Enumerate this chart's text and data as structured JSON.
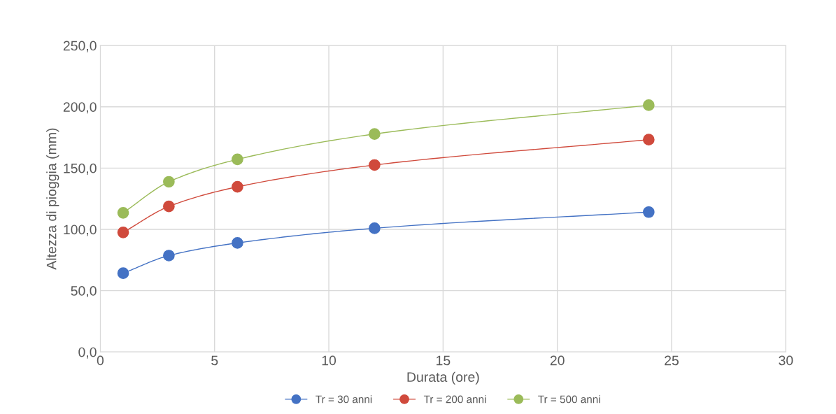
{
  "chart_data": {
    "type": "line",
    "xlabel": "Durata (ore)",
    "ylabel": "Altezza di pioggia (mm)",
    "x": [
      1,
      3,
      6,
      12,
      24
    ],
    "series": [
      {
        "name": "Tr = 30 anni",
        "color": "#4472c4",
        "values": [
          64.2,
          78.6,
          88.9,
          100.9,
          114.1
        ]
      },
      {
        "name": "Tr = 200 anni",
        "color": "#d04a3c",
        "values": [
          97.5,
          118.7,
          134.7,
          152.5,
          173.2
        ]
      },
      {
        "name": "Tr = 500 anni",
        "color": "#9bbb59",
        "values": [
          113.5,
          138.8,
          157.1,
          177.8,
          201.3
        ]
      }
    ],
    "xlim": [
      0,
      30
    ],
    "xticks": [
      0,
      5,
      10,
      15,
      20,
      25,
      30
    ],
    "ylim": [
      0,
      250
    ],
    "yticks": [
      {
        "value": 0,
        "label": "0,0"
      },
      {
        "value": 50,
        "label": "50,0"
      },
      {
        "value": 100,
        "label": "100,0"
      },
      {
        "value": 150,
        "label": "150,0"
      },
      {
        "value": 200,
        "label": "200,0"
      },
      {
        "value": 250,
        "label": "250,0"
      }
    ],
    "grid": true,
    "legend": "bottom",
    "marker": "circle",
    "line_style": "solid"
  }
}
